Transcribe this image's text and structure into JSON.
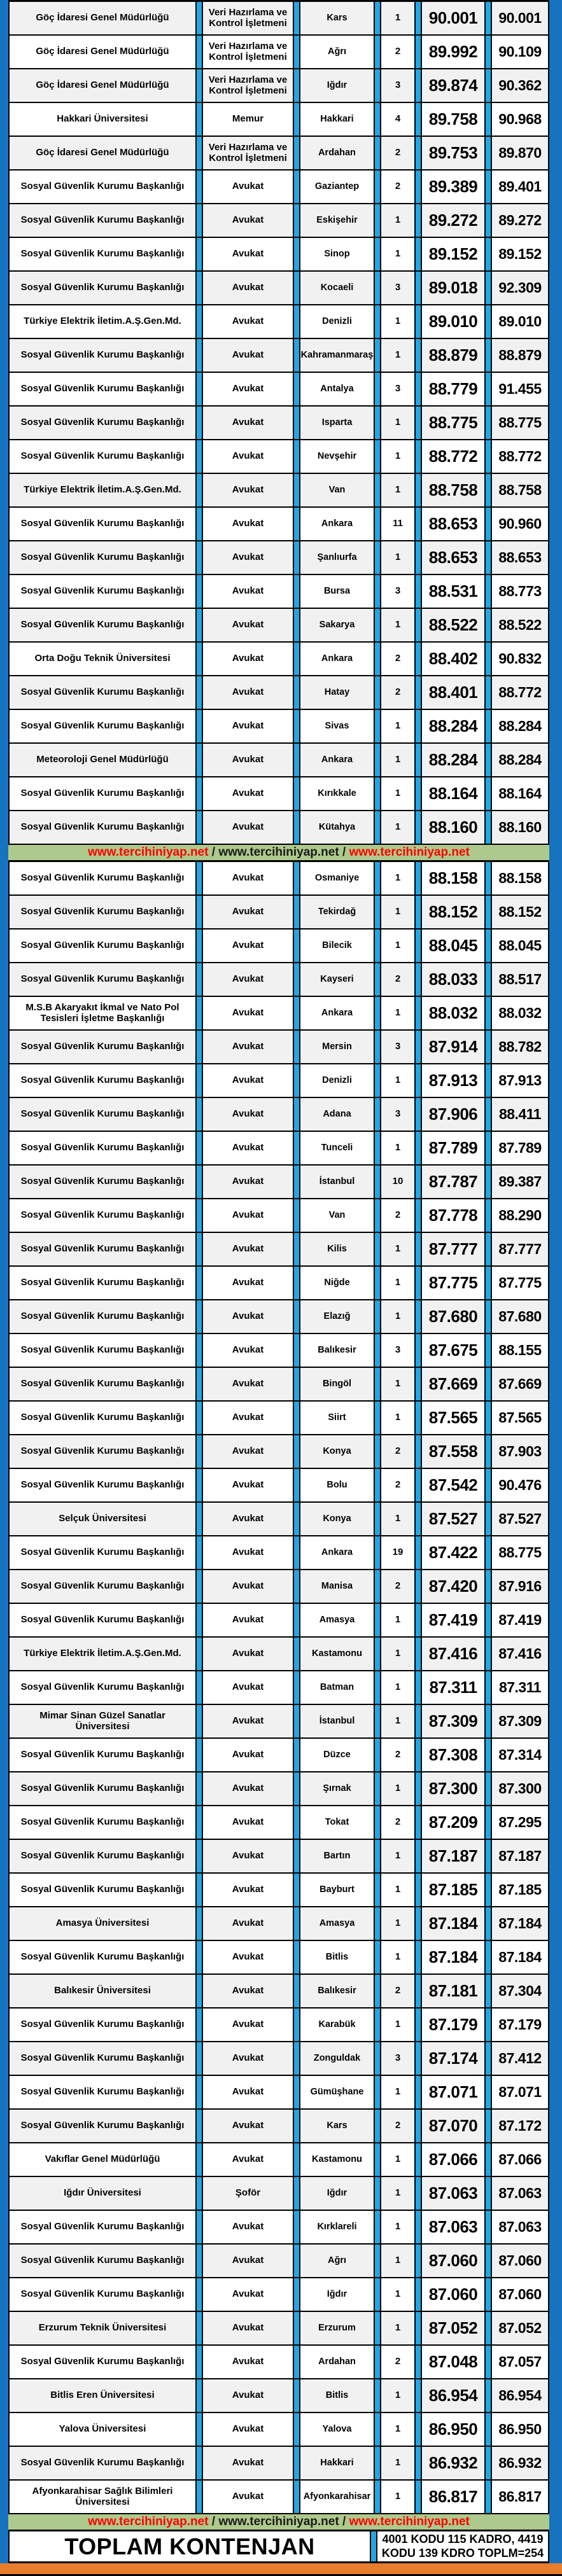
{
  "colors": {
    "outer_border_blue": "#1573c0",
    "column_separator_cyan": "#1fa8e4",
    "row_stripe_gray": "#f1f1f1",
    "row_stripe_white": "#ffffff",
    "banner_green": "#adc98b",
    "banner_red_text": "#ff0000",
    "grid_black": "#000000",
    "bottom_bar_orange": "#e87d2d"
  },
  "banner": {
    "parts": [
      {
        "text": "www.tercihiniyap.net",
        "color": "#ff0000"
      },
      {
        "text": " / ",
        "color": "#1a1a1a"
      },
      {
        "text": "www.tercihiniyap.net",
        "color": "#1a1a1a"
      },
      {
        "text": " / ",
        "color": "#1a1a1a"
      },
      {
        "text": "www.tercihiniyap.net",
        "color": "#ff0000"
      }
    ]
  },
  "footer": {
    "total_label": "TOPLAM KONTENJAN",
    "summary_line1": "4001 KODU 115 KADRO, 4419",
    "summary_line2": "KODU 139 KDRO TOPLM=254"
  },
  "table": {
    "banner_split_index": 25,
    "rows": [
      [
        "Göç İdaresi Genel Müdürlüğü",
        "Veri Hazırlama ve Kontrol İşletmeni",
        "Kars",
        "1",
        "90.001",
        "90.001"
      ],
      [
        "Göç İdaresi Genel Müdürlüğü",
        "Veri Hazırlama ve Kontrol İşletmeni",
        "Ağrı",
        "2",
        "89.992",
        "90.109"
      ],
      [
        "Göç İdaresi Genel Müdürlüğü",
        "Veri Hazırlama ve Kontrol İşletmeni",
        "Iğdır",
        "3",
        "89.874",
        "90.362"
      ],
      [
        "Hakkari Üniversitesi",
        "Memur",
        "Hakkari",
        "4",
        "89.758",
        "90.968"
      ],
      [
        "Göç İdaresi Genel Müdürlüğü",
        "Veri Hazırlama ve Kontrol İşletmeni",
        "Ardahan",
        "2",
        "89.753",
        "89.870"
      ],
      [
        "Sosyal Güvenlik Kurumu Başkanlığı",
        "Avukat",
        "Gaziantep",
        "2",
        "89.389",
        "89.401"
      ],
      [
        "Sosyal Güvenlik Kurumu Başkanlığı",
        "Avukat",
        "Eskişehir",
        "1",
        "89.272",
        "89.272"
      ],
      [
        "Sosyal Güvenlik Kurumu Başkanlığı",
        "Avukat",
        "Sinop",
        "1",
        "89.152",
        "89.152"
      ],
      [
        "Sosyal Güvenlik Kurumu Başkanlığı",
        "Avukat",
        "Kocaeli",
        "3",
        "89.018",
        "92.309"
      ],
      [
        "Türkiye Elektrik İletim.A.Ş.Gen.Md.",
        "Avukat",
        "Denizli",
        "1",
        "89.010",
        "89.010"
      ],
      [
        "Sosyal Güvenlik Kurumu Başkanlığı",
        "Avukat",
        "Kahramanmaraş",
        "1",
        "88.879",
        "88.879"
      ],
      [
        "Sosyal Güvenlik Kurumu Başkanlığı",
        "Avukat",
        "Antalya",
        "3",
        "88.779",
        "91.455"
      ],
      [
        "Sosyal Güvenlik Kurumu Başkanlığı",
        "Avukat",
        "Isparta",
        "1",
        "88.775",
        "88.775"
      ],
      [
        "Sosyal Güvenlik Kurumu Başkanlığı",
        "Avukat",
        "Nevşehir",
        "1",
        "88.772",
        "88.772"
      ],
      [
        "Türkiye Elektrik İletim.A.Ş.Gen.Md.",
        "Avukat",
        "Van",
        "1",
        "88.758",
        "88.758"
      ],
      [
        "Sosyal Güvenlik Kurumu Başkanlığı",
        "Avukat",
        "Ankara",
        "11",
        "88.653",
        "90.960"
      ],
      [
        "Sosyal Güvenlik Kurumu Başkanlığı",
        "Avukat",
        "Şanlıurfa",
        "1",
        "88.653",
        "88.653"
      ],
      [
        "Sosyal Güvenlik Kurumu Başkanlığı",
        "Avukat",
        "Bursa",
        "3",
        "88.531",
        "88.773"
      ],
      [
        "Sosyal Güvenlik Kurumu Başkanlığı",
        "Avukat",
        "Sakarya",
        "1",
        "88.522",
        "88.522"
      ],
      [
        "Orta Doğu Teknik Üniversitesi",
        "Avukat",
        "Ankara",
        "2",
        "88.402",
        "90.832"
      ],
      [
        "Sosyal Güvenlik Kurumu Başkanlığı",
        "Avukat",
        "Hatay",
        "2",
        "88.401",
        "88.772"
      ],
      [
        "Sosyal Güvenlik Kurumu Başkanlığı",
        "Avukat",
        "Sivas",
        "1",
        "88.284",
        "88.284"
      ],
      [
        "Meteoroloji Genel Müdürlüğü",
        "Avukat",
        "Ankara",
        "1",
        "88.284",
        "88.284"
      ],
      [
        "Sosyal Güvenlik Kurumu Başkanlığı",
        "Avukat",
        "Kırıkkale",
        "1",
        "88.164",
        "88.164"
      ],
      [
        "Sosyal Güvenlik Kurumu Başkanlığı",
        "Avukat",
        "Kütahya",
        "1",
        "88.160",
        "88.160"
      ],
      [
        "Sosyal Güvenlik Kurumu Başkanlığı",
        "Avukat",
        "Osmaniye",
        "1",
        "88.158",
        "88.158"
      ],
      [
        "Sosyal Güvenlik Kurumu Başkanlığı",
        "Avukat",
        "Tekirdağ",
        "1",
        "88.152",
        "88.152"
      ],
      [
        "Sosyal Güvenlik Kurumu Başkanlığı",
        "Avukat",
        "Bilecik",
        "1",
        "88.045",
        "88.045"
      ],
      [
        "Sosyal Güvenlik Kurumu Başkanlığı",
        "Avukat",
        "Kayseri",
        "2",
        "88.033",
        "88.517"
      ],
      [
        "M.S.B Akaryakıt İkmal ve Nato Pol Tesisleri İşletme Başkanlığı",
        "Avukat",
        "Ankara",
        "1",
        "88.032",
        "88.032"
      ],
      [
        "Sosyal Güvenlik Kurumu Başkanlığı",
        "Avukat",
        "Mersin",
        "3",
        "87.914",
        "88.782"
      ],
      [
        "Sosyal Güvenlik Kurumu Başkanlığı",
        "Avukat",
        "Denizli",
        "1",
        "87.913",
        "87.913"
      ],
      [
        "Sosyal Güvenlik Kurumu Başkanlığı",
        "Avukat",
        "Adana",
        "3",
        "87.906",
        "88.411"
      ],
      [
        "Sosyal Güvenlik Kurumu Başkanlığı",
        "Avukat",
        "Tunceli",
        "1",
        "87.789",
        "87.789"
      ],
      [
        "Sosyal Güvenlik Kurumu Başkanlığı",
        "Avukat",
        "İstanbul",
        "10",
        "87.787",
        "89.387"
      ],
      [
        "Sosyal Güvenlik Kurumu Başkanlığı",
        "Avukat",
        "Van",
        "2",
        "87.778",
        "88.290"
      ],
      [
        "Sosyal Güvenlik Kurumu Başkanlığı",
        "Avukat",
        "Kilis",
        "1",
        "87.777",
        "87.777"
      ],
      [
        "Sosyal Güvenlik Kurumu Başkanlığı",
        "Avukat",
        "Niğde",
        "1",
        "87.775",
        "87.775"
      ],
      [
        "Sosyal Güvenlik Kurumu Başkanlığı",
        "Avukat",
        "Elazığ",
        "1",
        "87.680",
        "87.680"
      ],
      [
        "Sosyal Güvenlik Kurumu Başkanlığı",
        "Avukat",
        "Balıkesir",
        "3",
        "87.675",
        "88.155"
      ],
      [
        "Sosyal Güvenlik Kurumu Başkanlığı",
        "Avukat",
        "Bingöl",
        "1",
        "87.669",
        "87.669"
      ],
      [
        "Sosyal Güvenlik Kurumu Başkanlığı",
        "Avukat",
        "Siirt",
        "1",
        "87.565",
        "87.565"
      ],
      [
        "Sosyal Güvenlik Kurumu Başkanlığı",
        "Avukat",
        "Konya",
        "2",
        "87.558",
        "87.903"
      ],
      [
        "Sosyal Güvenlik Kurumu Başkanlığı",
        "Avukat",
        "Bolu",
        "2",
        "87.542",
        "90.476"
      ],
      [
        "Selçuk Üniversitesi",
        "Avukat",
        "Konya",
        "1",
        "87.527",
        "87.527"
      ],
      [
        "Sosyal Güvenlik Kurumu Başkanlığı",
        "Avukat",
        "Ankara",
        "19",
        "87.422",
        "88.775"
      ],
      [
        "Sosyal Güvenlik Kurumu Başkanlığı",
        "Avukat",
        "Manisa",
        "2",
        "87.420",
        "87.916"
      ],
      [
        "Sosyal Güvenlik Kurumu Başkanlığı",
        "Avukat",
        "Amasya",
        "1",
        "87.419",
        "87.419"
      ],
      [
        "Türkiye Elektrik İletim.A.Ş.Gen.Md.",
        "Avukat",
        "Kastamonu",
        "1",
        "87.416",
        "87.416"
      ],
      [
        "Sosyal Güvenlik Kurumu Başkanlığı",
        "Avukat",
        "Batman",
        "1",
        "87.311",
        "87.311"
      ],
      [
        "Mimar Sinan Güzel Sanatlar Üniversitesi",
        "Avukat",
        "İstanbul",
        "1",
        "87.309",
        "87.309"
      ],
      [
        "Sosyal Güvenlik Kurumu Başkanlığı",
        "Avukat",
        "Düzce",
        "2",
        "87.308",
        "87.314"
      ],
      [
        "Sosyal Güvenlik Kurumu Başkanlığı",
        "Avukat",
        "Şırnak",
        "1",
        "87.300",
        "87.300"
      ],
      [
        "Sosyal Güvenlik Kurumu Başkanlığı",
        "Avukat",
        "Tokat",
        "2",
        "87.209",
        "87.295"
      ],
      [
        "Sosyal Güvenlik Kurumu Başkanlığı",
        "Avukat",
        "Bartın",
        "1",
        "87.187",
        "87.187"
      ],
      [
        "Sosyal Güvenlik Kurumu Başkanlığı",
        "Avukat",
        "Bayburt",
        "1",
        "87.185",
        "87.185"
      ],
      [
        "Amasya Üniversitesi",
        "Avukat",
        "Amasya",
        "1",
        "87.184",
        "87.184"
      ],
      [
        "Sosyal Güvenlik Kurumu Başkanlığı",
        "Avukat",
        "Bitlis",
        "1",
        "87.184",
        "87.184"
      ],
      [
        "Balıkesir Üniversitesi",
        "Avukat",
        "Balıkesir",
        "2",
        "87.181",
        "87.304"
      ],
      [
        "Sosyal Güvenlik Kurumu Başkanlığı",
        "Avukat",
        "Karabük",
        "1",
        "87.179",
        "87.179"
      ],
      [
        "Sosyal Güvenlik Kurumu Başkanlığı",
        "Avukat",
        "Zonguldak",
        "3",
        "87.174",
        "87.412"
      ],
      [
        "Sosyal Güvenlik Kurumu Başkanlığı",
        "Avukat",
        "Gümüşhane",
        "1",
        "87.071",
        "87.071"
      ],
      [
        "Sosyal Güvenlik Kurumu Başkanlığı",
        "Avukat",
        "Kars",
        "2",
        "87.070",
        "87.172"
      ],
      [
        "Vakıflar Genel Müdürlüğü",
        "Avukat",
        "Kastamonu",
        "1",
        "87.066",
        "87.066"
      ],
      [
        "Iğdır Üniversitesi",
        "Şoför",
        "Iğdır",
        "1",
        "87.063",
        "87.063"
      ],
      [
        "Sosyal Güvenlik Kurumu Başkanlığı",
        "Avukat",
        "Kırklareli",
        "1",
        "87.063",
        "87.063"
      ],
      [
        "Sosyal Güvenlik Kurumu Başkanlığı",
        "Avukat",
        "Ağrı",
        "1",
        "87.060",
        "87.060"
      ],
      [
        "Sosyal Güvenlik Kurumu Başkanlığı",
        "Avukat",
        "Iğdır",
        "1",
        "87.060",
        "87.060"
      ],
      [
        "Erzurum Teknik Üniversitesi",
        "Avukat",
        "Erzurum",
        "1",
        "87.052",
        "87.052"
      ],
      [
        "Sosyal Güvenlik Kurumu Başkanlığı",
        "Avukat",
        "Ardahan",
        "2",
        "87.048",
        "87.057"
      ],
      [
        "Bitlis Eren Üniversitesi",
        "Avukat",
        "Bitlis",
        "1",
        "86.954",
        "86.954"
      ],
      [
        "Yalova Üniversitesi",
        "Avukat",
        "Yalova",
        "1",
        "86.950",
        "86.950"
      ],
      [
        "Sosyal Güvenlik Kurumu Başkanlığı",
        "Avukat",
        "Hakkari",
        "1",
        "86.932",
        "86.932"
      ],
      [
        "Afyonkarahisar Sağlık Bilimleri Üniversitesi",
        "Avukat",
        "Afyonkarahisar",
        "1",
        "86.817",
        "86.817"
      ]
    ]
  }
}
